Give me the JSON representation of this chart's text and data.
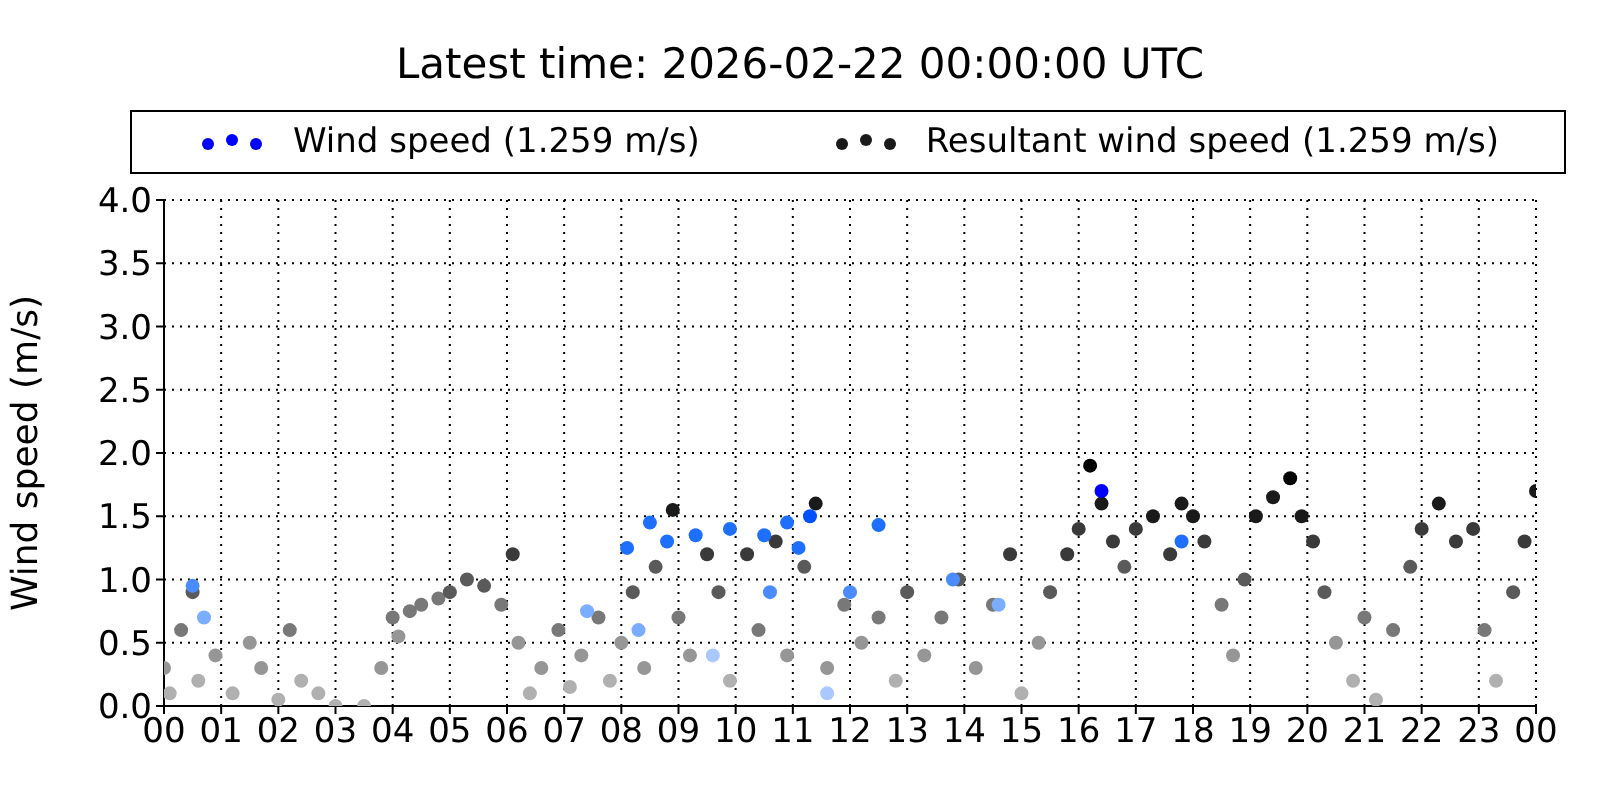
{
  "chart_data": {
    "type": "scatter",
    "title": "Latest time: 2026-02-22 00:00:00 UTC",
    "ylabel": "Wind speed (m/s)",
    "xlim": [
      0,
      24
    ],
    "xticks": [
      {
        "value": 0,
        "label": "00"
      },
      {
        "value": 1,
        "label": "01"
      },
      {
        "value": 2,
        "label": "02"
      },
      {
        "value": 3,
        "label": "03"
      },
      {
        "value": 4,
        "label": "04"
      },
      {
        "value": 5,
        "label": "05"
      },
      {
        "value": 6,
        "label": "06"
      },
      {
        "value": 7,
        "label": "07"
      },
      {
        "value": 8,
        "label": "08"
      },
      {
        "value": 9,
        "label": "09"
      },
      {
        "value": 10,
        "label": "10"
      },
      {
        "value": 11,
        "label": "11"
      },
      {
        "value": 12,
        "label": "12"
      },
      {
        "value": 13,
        "label": "13"
      },
      {
        "value": 14,
        "label": "14"
      },
      {
        "value": 15,
        "label": "15"
      },
      {
        "value": 16,
        "label": "16"
      },
      {
        "value": 17,
        "label": "17"
      },
      {
        "value": 18,
        "label": "18"
      },
      {
        "value": 19,
        "label": "19"
      },
      {
        "value": 20,
        "label": "20"
      },
      {
        "value": 21,
        "label": "21"
      },
      {
        "value": 22,
        "label": "22"
      },
      {
        "value": 23,
        "label": "23"
      },
      {
        "value": 24,
        "label": "00"
      }
    ],
    "ylim": [
      0,
      4
    ],
    "yticks": [
      {
        "value": 0,
        "label": "0.0"
      },
      {
        "value": 0.5,
        "label": "0.5"
      },
      {
        "value": 1,
        "label": "1.0"
      },
      {
        "value": 1.5,
        "label": "1.5"
      },
      {
        "value": 2,
        "label": "2.0"
      },
      {
        "value": 2.5,
        "label": "2.5"
      },
      {
        "value": 3,
        "label": "3.0"
      },
      {
        "value": 3.5,
        "label": "3.5"
      },
      {
        "value": 4,
        "label": "4.0"
      }
    ],
    "grid": true,
    "legend": "top",
    "marker": "circle",
    "series": [
      {
        "name": "Wind speed (1.259 m/s)",
        "color": "#0000ff",
        "x": [
          0.5,
          0.7,
          7.4,
          8.1,
          8.3,
          8.5,
          8.8,
          9.3,
          9.6,
          9.9,
          10.5,
          10.6,
          10.9,
          11.1,
          11.3,
          11.6,
          12.0,
          12.5,
          13.8,
          14.6,
          16.4,
          17.8
        ],
        "values": [
          0.95,
          0.7,
          0.75,
          1.25,
          0.6,
          1.45,
          1.3,
          1.35,
          0.4,
          1.4,
          1.35,
          0.9,
          1.45,
          1.25,
          1.5,
          0.1,
          0.9,
          1.43,
          1.0,
          0.8,
          1.7,
          1.3
        ],
        "colors": [
          "#4a8cff",
          "#7aacff",
          "#7aacff",
          "#1f6fff",
          "#7aacff",
          "#1f6fff",
          "#1f6fff",
          "#1f6fff",
          "#a8c8ff",
          "#1f6fff",
          "#1f6fff",
          "#4a8cff",
          "#1f6fff",
          "#1f6fff",
          "#0050ff",
          "#a8c8ff",
          "#4a8cff",
          "#1f6fff",
          "#4a8cff",
          "#7aacff",
          "#0000ff",
          "#1f6fff"
        ]
      },
      {
        "name": "Resultant wind speed (1.259 m/s)",
        "color": "#1a1a1a",
        "x": [
          0.0,
          0.1,
          0.3,
          0.5,
          0.6,
          0.9,
          1.2,
          1.5,
          1.7,
          2.0,
          2.2,
          2.4,
          2.7,
          3.0,
          3.5,
          3.8,
          4.0,
          4.1,
          4.3,
          4.5,
          4.8,
          5.0,
          5.3,
          5.6,
          5.9,
          6.1,
          6.2,
          6.4,
          6.6,
          6.9,
          7.1,
          7.3,
          7.6,
          7.8,
          8.0,
          8.2,
          8.4,
          8.6,
          8.9,
          9.0,
          9.2,
          9.5,
          9.7,
          9.9,
          10.2,
          10.4,
          10.7,
          10.9,
          11.2,
          11.4,
          11.6,
          11.9,
          12.2,
          12.5,
          12.8,
          13.0,
          13.3,
          13.6,
          13.9,
          14.2,
          14.5,
          14.8,
          15.0,
          15.3,
          15.5,
          15.8,
          16.0,
          16.2,
          16.4,
          16.6,
          16.8,
          17.0,
          17.3,
          17.6,
          17.8,
          18.0,
          18.2,
          18.5,
          18.7,
          18.9,
          19.1,
          19.4,
          19.7,
          19.9,
          20.1,
          20.3,
          20.5,
          20.8,
          21.0,
          21.2,
          21.5,
          21.8,
          22.0,
          22.3,
          22.6,
          22.9,
          23.1,
          23.3,
          23.6,
          23.8,
          24.0
        ],
        "values": [
          0.3,
          0.1,
          0.6,
          0.9,
          0.2,
          0.4,
          0.1,
          0.5,
          0.3,
          0.05,
          0.6,
          0.2,
          0.1,
          0.0,
          0.0,
          0.3,
          0.7,
          0.55,
          0.75,
          0.8,
          0.85,
          0.9,
          1.0,
          0.95,
          0.8,
          1.2,
          0.5,
          0.1,
          0.3,
          0.6,
          0.15,
          0.4,
          0.7,
          0.2,
          0.5,
          0.9,
          0.3,
          1.1,
          1.55,
          0.7,
          0.4,
          1.2,
          0.9,
          0.2,
          1.2,
          0.6,
          1.3,
          0.4,
          1.1,
          1.6,
          0.3,
          0.8,
          0.5,
          0.7,
          0.2,
          0.9,
          0.4,
          0.7,
          1.0,
          0.3,
          0.8,
          1.2,
          0.1,
          0.5,
          0.9,
          1.2,
          1.4,
          1.9,
          1.6,
          1.3,
          1.1,
          1.4,
          1.5,
          1.2,
          1.6,
          1.5,
          1.3,
          0.8,
          0.4,
          1.0,
          1.5,
          1.65,
          1.8,
          1.5,
          1.3,
          0.9,
          0.5,
          0.2,
          0.7,
          0.05,
          0.6,
          1.1,
          1.4,
          1.6,
          1.3,
          1.4,
          0.6,
          0.2,
          0.9,
          1.3,
          1.7
        ],
        "colors": [
          "#969696",
          "#b0b0b0",
          "#787878",
          "#5a5a5a",
          "#b0b0b0",
          "#969696",
          "#b0b0b0",
          "#969696",
          "#969696",
          "#b0b0b0",
          "#787878",
          "#b0b0b0",
          "#b0b0b0",
          "#b0b0b0",
          "#b0b0b0",
          "#969696",
          "#787878",
          "#969696",
          "#787878",
          "#787878",
          "#787878",
          "#5a5a5a",
          "#5a5a5a",
          "#5a5a5a",
          "#787878",
          "#3a3a3a",
          "#969696",
          "#b0b0b0",
          "#969696",
          "#787878",
          "#b0b0b0",
          "#969696",
          "#787878",
          "#b0b0b0",
          "#969696",
          "#5a5a5a",
          "#969696",
          "#5a5a5a",
          "#1a1a1a",
          "#787878",
          "#969696",
          "#3a3a3a",
          "#5a5a5a",
          "#b0b0b0",
          "#3a3a3a",
          "#787878",
          "#3a3a3a",
          "#969696",
          "#5a5a5a",
          "#1a1a1a",
          "#969696",
          "#787878",
          "#969696",
          "#787878",
          "#b0b0b0",
          "#5a5a5a",
          "#969696",
          "#787878",
          "#5a5a5a",
          "#969696",
          "#787878",
          "#3a3a3a",
          "#b0b0b0",
          "#969696",
          "#5a5a5a",
          "#3a3a3a",
          "#3a3a3a",
          "#000000",
          "#1a1a1a",
          "#3a3a3a",
          "#5a5a5a",
          "#3a3a3a",
          "#1a1a1a",
          "#3a3a3a",
          "#1a1a1a",
          "#1a1a1a",
          "#3a3a3a",
          "#787878",
          "#969696",
          "#5a5a5a",
          "#1a1a1a",
          "#1a1a1a",
          "#000000",
          "#1a1a1a",
          "#3a3a3a",
          "#5a5a5a",
          "#969696",
          "#b0b0b0",
          "#787878",
          "#b0b0b0",
          "#787878",
          "#5a5a5a",
          "#3a3a3a",
          "#1a1a1a",
          "#3a3a3a",
          "#3a3a3a",
          "#787878",
          "#b0b0b0",
          "#5a5a5a",
          "#3a3a3a",
          "#1a1a1a"
        ]
      }
    ]
  }
}
